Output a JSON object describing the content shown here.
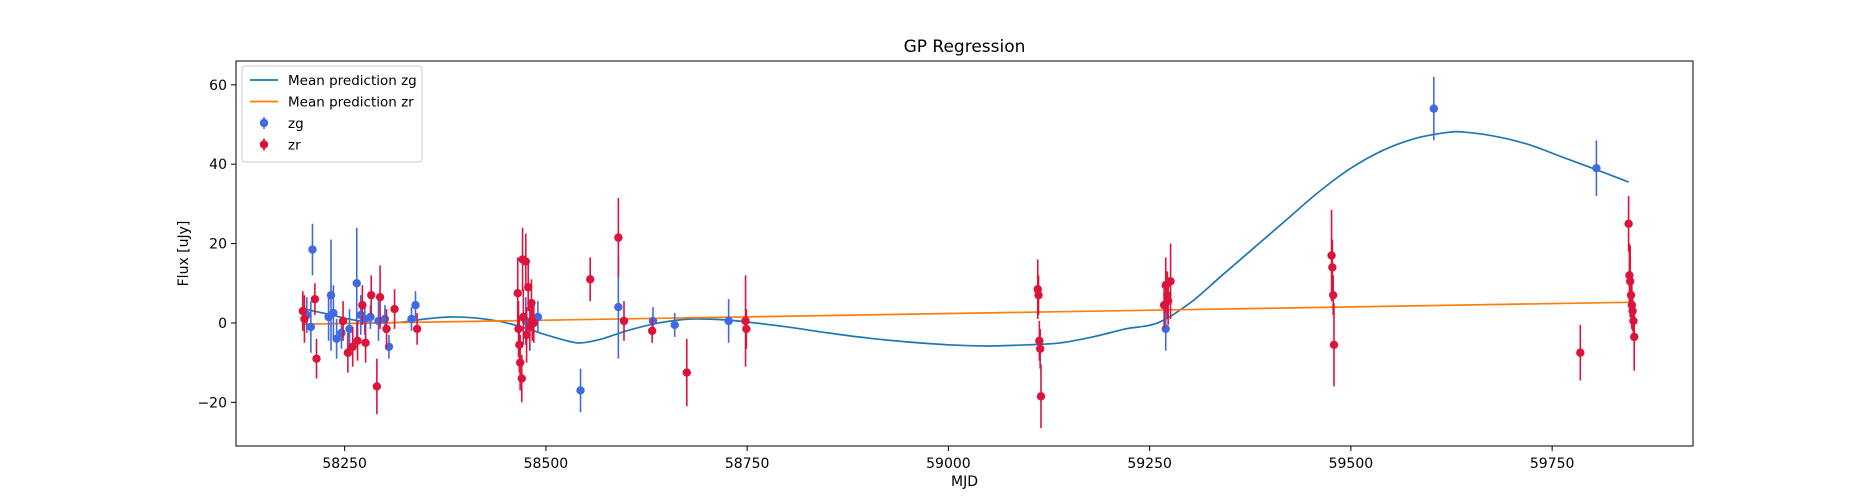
{
  "chart_data": {
    "type": "scatter",
    "title": "GP Regression",
    "xlabel": "MJD",
    "ylabel": "Flux [uJy]",
    "xlim": [
      58115,
      59925
    ],
    "ylim": [
      -31,
      66
    ],
    "xticks": [
      58250,
      58500,
      58750,
      59000,
      59250,
      59500,
      59750
    ],
    "yticks": [
      -20,
      0,
      20,
      40,
      60
    ],
    "legend_position": "upper-left",
    "lines": [
      {
        "name": "Mean prediction zg",
        "color": "#1f77b4",
        "x": [
          58200,
          58230,
          58260,
          58290,
          58320,
          58350,
          58380,
          58410,
          58440,
          58470,
          58500,
          58530,
          58545,
          58570,
          58600,
          58640,
          58680,
          58720,
          58760,
          58800,
          58850,
          58900,
          58950,
          59000,
          59050,
          59100,
          59140,
          59180,
          59220,
          59260,
          59300,
          59340,
          59380,
          59420,
          59460,
          59500,
          59540,
          59580,
          59620,
          59640,
          59680,
          59720,
          59760,
          59800,
          59845
        ],
        "y": [
          3.5,
          2.2,
          0.8,
          0.0,
          0.2,
          1.0,
          1.5,
          1.3,
          0.5,
          -1.0,
          -3.0,
          -4.7,
          -5.0,
          -4.0,
          -2.0,
          0.0,
          1.0,
          0.8,
          0.0,
          -1.0,
          -2.5,
          -3.8,
          -4.8,
          -5.5,
          -5.8,
          -5.5,
          -5.0,
          -3.5,
          -1.5,
          0.0,
          5.0,
          12.0,
          19.0,
          26.0,
          33.0,
          39.0,
          43.5,
          46.5,
          48.0,
          48.1,
          47.0,
          45.0,
          42.0,
          39.0,
          35.5
        ]
      },
      {
        "name": "Mean prediction zr",
        "color": "#ff7f0e",
        "x": [
          58200,
          59845
        ],
        "y": [
          -0.3,
          5.2
        ]
      }
    ],
    "series": [
      {
        "name": "zg",
        "color": "#4169e1",
        "points": [
          {
            "x": 58203,
            "y": 2.0,
            "err": 4.5
          },
          {
            "x": 58208,
            "y": -1.0,
            "err": 6.5
          },
          {
            "x": 58210,
            "y": 18.5,
            "err": 6.5
          },
          {
            "x": 58230,
            "y": 1.5,
            "err": 6.0
          },
          {
            "x": 58233,
            "y": 7.0,
            "err": 14.0
          },
          {
            "x": 58236,
            "y": 2.5,
            "err": 7.0
          },
          {
            "x": 58240,
            "y": -4.0,
            "err": 5.0
          },
          {
            "x": 58246,
            "y": -2.5,
            "err": 4.0
          },
          {
            "x": 58256,
            "y": -1.5,
            "err": 5.0
          },
          {
            "x": 58265,
            "y": 10.0,
            "err": 14.0
          },
          {
            "x": 58270,
            "y": 2.0,
            "err": 5.0
          },
          {
            "x": 58275,
            "y": 1.0,
            "err": 4.0
          },
          {
            "x": 58282,
            "y": 1.5,
            "err": 3.0
          },
          {
            "x": 58292,
            "y": 0.5,
            "err": 5.0
          },
          {
            "x": 58300,
            "y": 1.0,
            "err": 3.5
          },
          {
            "x": 58305,
            "y": -6.0,
            "err": 3.0
          },
          {
            "x": 58333,
            "y": 1.0,
            "err": 3.0
          },
          {
            "x": 58338,
            "y": 4.5,
            "err": 3.5
          },
          {
            "x": 58475,
            "y": 0.5,
            "err": 6.0
          },
          {
            "x": 58490,
            "y": 1.5,
            "err": 4.0
          },
          {
            "x": 58543,
            "y": -17.0,
            "err": 5.5
          },
          {
            "x": 58590,
            "y": 4.0,
            "err": 13.0
          },
          {
            "x": 58633,
            "y": 0.5,
            "err": 3.5
          },
          {
            "x": 58660,
            "y": -0.5,
            "err": 3.0
          },
          {
            "x": 58727,
            "y": 0.5,
            "err": 5.5
          },
          {
            "x": 59270,
            "y": -1.5,
            "err": 5.5
          },
          {
            "x": 59603,
            "y": 54.0,
            "err": 8.0
          },
          {
            "x": 59805,
            "y": 39.0,
            "err": 7.0
          }
        ]
      },
      {
        "name": "zr",
        "color": "#dc143c",
        "points": [
          {
            "x": 58198,
            "y": 3.0,
            "err": 5.0
          },
          {
            "x": 58200,
            "y": 1.0,
            "err": 6.0
          },
          {
            "x": 58213,
            "y": 6.0,
            "err": 4.0
          },
          {
            "x": 58215,
            "y": -9.0,
            "err": 5.0
          },
          {
            "x": 58248,
            "y": 0.5,
            "err": 5.0
          },
          {
            "x": 58254,
            "y": -7.5,
            "err": 5.0
          },
          {
            "x": 58260,
            "y": -6.0,
            "err": 5.0
          },
          {
            "x": 58266,
            "y": -4.5,
            "err": 5.0
          },
          {
            "x": 58272,
            "y": 4.5,
            "err": 5.0
          },
          {
            "x": 58276,
            "y": -5.0,
            "err": 5.0
          },
          {
            "x": 58283,
            "y": 7.0,
            "err": 5.0
          },
          {
            "x": 58290,
            "y": -16.0,
            "err": 7.0
          },
          {
            "x": 58294,
            "y": 6.5,
            "err": 8.0
          },
          {
            "x": 58302,
            "y": -1.5,
            "err": 5.0
          },
          {
            "x": 58312,
            "y": 3.5,
            "err": 5.0
          },
          {
            "x": 58340,
            "y": -1.5,
            "err": 4.0
          },
          {
            "x": 58465,
            "y": 7.5,
            "err": 9.0
          },
          {
            "x": 58466,
            "y": -1.5,
            "err": 7.0
          },
          {
            "x": 58467,
            "y": -5.5,
            "err": 7.0
          },
          {
            "x": 58468,
            "y": -10.0,
            "err": 7.0
          },
          {
            "x": 58470,
            "y": -14.0,
            "err": 6.0
          },
          {
            "x": 58471,
            "y": 16.0,
            "err": 8.0
          },
          {
            "x": 58472,
            "y": 1.5,
            "err": 7.0
          },
          {
            "x": 58475,
            "y": 15.5,
            "err": 7.0
          },
          {
            "x": 58476,
            "y": -3.0,
            "err": 7.0
          },
          {
            "x": 58478,
            "y": 9.0,
            "err": 6.0
          },
          {
            "x": 58480,
            "y": -1.0,
            "err": 6.0
          },
          {
            "x": 58482,
            "y": 5.0,
            "err": 6.0
          },
          {
            "x": 58483,
            "y": 0.5,
            "err": 5.0
          },
          {
            "x": 58485,
            "y": 0.0,
            "err": 5.0
          },
          {
            "x": 58555,
            "y": 11.0,
            "err": 5.5
          },
          {
            "x": 58590,
            "y": 21.5,
            "err": 10.0
          },
          {
            "x": 58597,
            "y": 0.5,
            "err": 5.0
          },
          {
            "x": 58632,
            "y": -2.0,
            "err": 3.0
          },
          {
            "x": 58675,
            "y": -12.5,
            "err": 8.5
          },
          {
            "x": 58748,
            "y": 0.5,
            "err": 11.5
          },
          {
            "x": 58749,
            "y": -1.5,
            "err": 5.0
          },
          {
            "x": 59111,
            "y": 8.5,
            "err": 7.5
          },
          {
            "x": 59112,
            "y": 7.0,
            "err": 5.0
          },
          {
            "x": 59113,
            "y": -4.5,
            "err": 5.0
          },
          {
            "x": 59114,
            "y": -6.5,
            "err": 5.0
          },
          {
            "x": 59115,
            "y": -18.5,
            "err": 8.0
          },
          {
            "x": 59268,
            "y": 4.5,
            "err": 6.0
          },
          {
            "x": 59270,
            "y": 9.5,
            "err": 7.0
          },
          {
            "x": 59272,
            "y": 7.0,
            "err": 6.0
          },
          {
            "x": 59273,
            "y": 5.5,
            "err": 6.0
          },
          {
            "x": 59276,
            "y": 10.5,
            "err": 9.5
          },
          {
            "x": 59476,
            "y": 17.0,
            "err": 11.5
          },
          {
            "x": 59477,
            "y": 14.0,
            "err": 7.0
          },
          {
            "x": 59478,
            "y": 7.0,
            "err": 5.0
          },
          {
            "x": 59479,
            "y": -5.5,
            "err": 10.5
          },
          {
            "x": 59785,
            "y": -7.5,
            "err": 7.0
          },
          {
            "x": 59845,
            "y": 25.0,
            "err": 7.0
          },
          {
            "x": 59846,
            "y": 12.0,
            "err": 8.0
          },
          {
            "x": 59847,
            "y": 10.5,
            "err": 9.0
          },
          {
            "x": 59848,
            "y": 7.0,
            "err": 6.0
          },
          {
            "x": 59849,
            "y": 4.5,
            "err": 6.0
          },
          {
            "x": 59850,
            "y": 3.0,
            "err": 5.0
          },
          {
            "x": 59851,
            "y": 0.5,
            "err": 5.0
          },
          {
            "x": 59852,
            "y": -3.5,
            "err": 8.5
          }
        ]
      }
    ],
    "legend": [
      {
        "label": "Mean prediction zg",
        "kind": "line",
        "color": "#1f77b4"
      },
      {
        "label": "Mean prediction zr",
        "kind": "line",
        "color": "#ff7f0e"
      },
      {
        "label": "zg",
        "kind": "errorbar",
        "color": "#4169e1"
      },
      {
        "label": "zr",
        "kind": "errorbar",
        "color": "#dc143c"
      }
    ]
  }
}
